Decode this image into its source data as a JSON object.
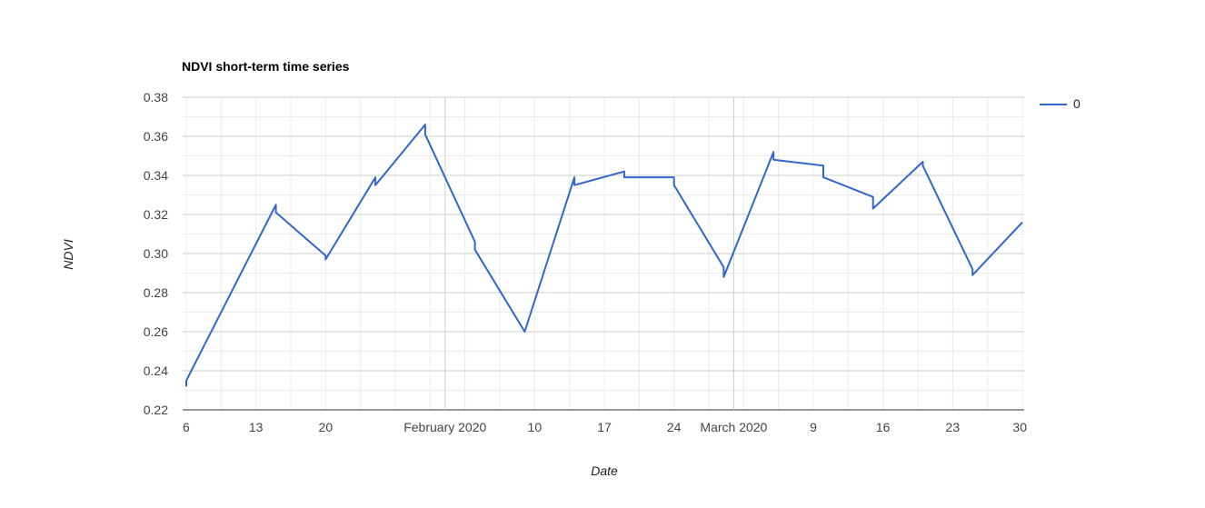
{
  "chart_data": {
    "type": "line",
    "title": "NDVI short-term time series",
    "xlabel": "Date",
    "ylabel": "NDVI",
    "xlim": [
      "2020-01-06",
      "2020-03-30"
    ],
    "ylim": [
      0.22,
      0.38
    ],
    "y_ticks": [
      0.22,
      0.24,
      0.26,
      0.28,
      0.3,
      0.32,
      0.34,
      0.36,
      0.38
    ],
    "y_tick_labels": [
      "0.22",
      "0.24",
      "0.26",
      "0.28",
      "0.30",
      "0.32",
      "0.34",
      "0.36",
      "0.38"
    ],
    "x_ticks": [
      {
        "date": "2020-01-06",
        "label": "6"
      },
      {
        "date": "2020-01-13",
        "label": "13"
      },
      {
        "date": "2020-01-20",
        "label": "20"
      },
      {
        "date": "2020-02-01",
        "label": "February 2020"
      },
      {
        "date": "2020-02-10",
        "label": "10"
      },
      {
        "date": "2020-02-17",
        "label": "17"
      },
      {
        "date": "2020-02-24",
        "label": "24"
      },
      {
        "date": "2020-03-01",
        "label": "March 2020"
      },
      {
        "date": "2020-03-09",
        "label": "9"
      },
      {
        "date": "2020-03-16",
        "label": "16"
      },
      {
        "date": "2020-03-23",
        "label": "23"
      },
      {
        "date": "2020-03-30",
        "label": "30"
      }
    ],
    "legend_position": "right",
    "grid": true,
    "series": [
      {
        "name": "0",
        "color": "#3366cc",
        "points": [
          {
            "x": "2020-01-06",
            "y": 0.232
          },
          {
            "x": "2020-01-06",
            "y": 0.235
          },
          {
            "x": "2020-01-15",
            "y": 0.325
          },
          {
            "x": "2020-01-15",
            "y": 0.321
          },
          {
            "x": "2020-01-20",
            "y": 0.299
          },
          {
            "x": "2020-01-20",
            "y": 0.297
          },
          {
            "x": "2020-01-25",
            "y": 0.339
          },
          {
            "x": "2020-01-25",
            "y": 0.335
          },
          {
            "x": "2020-01-30",
            "y": 0.366
          },
          {
            "x": "2020-01-30",
            "y": 0.361
          },
          {
            "x": "2020-02-04",
            "y": 0.306
          },
          {
            "x": "2020-02-04",
            "y": 0.302
          },
          {
            "x": "2020-02-09",
            "y": 0.26
          },
          {
            "x": "2020-02-14",
            "y": 0.339
          },
          {
            "x": "2020-02-14",
            "y": 0.335
          },
          {
            "x": "2020-02-19",
            "y": 0.342
          },
          {
            "x": "2020-02-19",
            "y": 0.339
          },
          {
            "x": "2020-02-24",
            "y": 0.339
          },
          {
            "x": "2020-02-24",
            "y": 0.335
          },
          {
            "x": "2020-02-29",
            "y": 0.293
          },
          {
            "x": "2020-02-29",
            "y": 0.288
          },
          {
            "x": "2020-03-05",
            "y": 0.352
          },
          {
            "x": "2020-03-05",
            "y": 0.348
          },
          {
            "x": "2020-03-10",
            "y": 0.345
          },
          {
            "x": "2020-03-10",
            "y": 0.339
          },
          {
            "x": "2020-03-15",
            "y": 0.329
          },
          {
            "x": "2020-03-15",
            "y": 0.323
          },
          {
            "x": "2020-03-20",
            "y": 0.347
          },
          {
            "x": "2020-03-20",
            "y": 0.345
          },
          {
            "x": "2020-03-25",
            "y": 0.292
          },
          {
            "x": "2020-03-25",
            "y": 0.289
          },
          {
            "x": "2020-03-30",
            "y": 0.316
          }
        ]
      }
    ]
  }
}
